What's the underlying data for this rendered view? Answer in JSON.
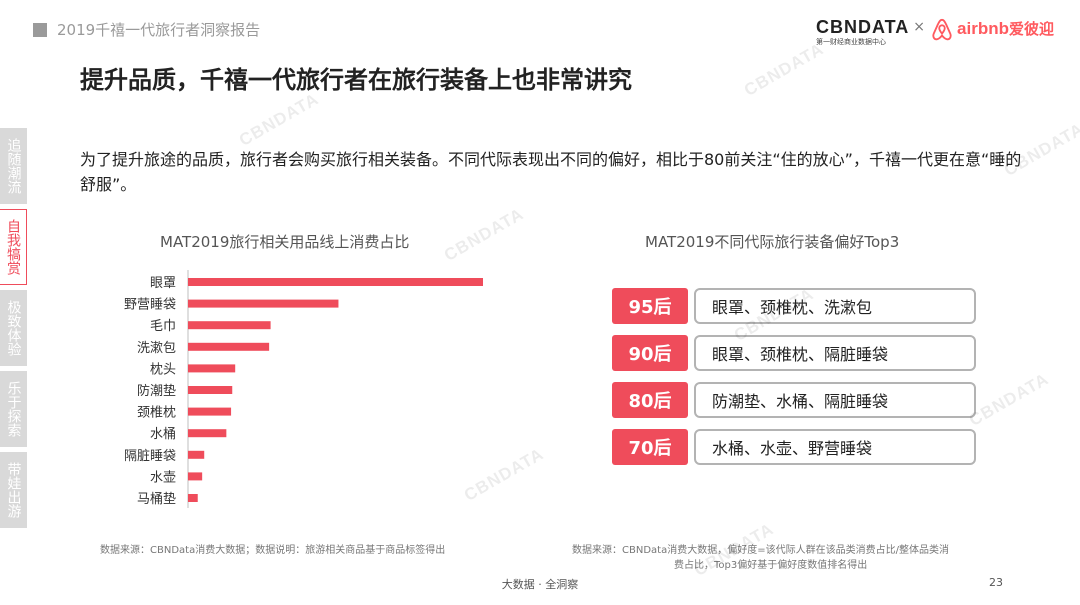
{
  "header": {
    "report_title": "2019千禧一代旅行者洞察报告",
    "cbn_logo": "CBNDATA",
    "cbn_tagline": "第一财经商业数据中心",
    "times": "×",
    "airbnb_logo": "airbnb",
    "airbnb_cn": "爱彼迎"
  },
  "headline": "提升品质，千禧一代旅行者在旅行装备上也非常讲究",
  "intro": "为了提升旅途的品质，旅行者会购买旅行相关装备。不同代际表现出不同的偏好，相比于80前关注“住的放心”，千禧一代更在意“睡的舒服”。",
  "sidenav": [
    {
      "label": "追随潮流",
      "active": false
    },
    {
      "label": "自我犒赏",
      "active": true
    },
    {
      "label": "极致体验",
      "active": false
    },
    {
      "label": "乐于探索",
      "active": false
    },
    {
      "label": "带娃出游",
      "active": false
    }
  ],
  "chart_data": [
    {
      "type": "bar",
      "orientation": "horizontal",
      "title": "MAT2019旅行相关用品线上消费占比",
      "categories": [
        "眼罩",
        "野营睡袋",
        "毛巾",
        "洗漱包",
        "枕头",
        "防潮垫",
        "颈椎枕",
        "水桶",
        "隔脏睡袋",
        "水壶",
        "马桶垫"
      ],
      "values": [
        100,
        51,
        28,
        27.5,
        16,
        15,
        14.6,
        13,
        5.5,
        4.8,
        3.3
      ],
      "xlabel": "",
      "ylabel": "",
      "bar_color": "#ef4c5b",
      "grid": false
    },
    {
      "type": "table",
      "title": "MAT2019不同代际旅行装备偏好Top3",
      "rows": [
        {
          "generation": "95后",
          "items": "眼罩、颈椎枕、洗漱包"
        },
        {
          "generation": "90后",
          "items": "眼罩、颈椎枕、隔脏睡袋"
        },
        {
          "generation": "80后",
          "items": "防潮垫、水桶、隔脏睡袋"
        },
        {
          "generation": "70后",
          "items": "水桶、水壶、野营睡袋"
        }
      ]
    }
  ],
  "sources": {
    "left": "数据来源：CBNData消费大数据；数据说明：旅游相关商品基于商品标签得出",
    "right_line1": "数据来源：CBNData消费大数据，偏好度=该代际人群在该品类消费占比/整体品类消",
    "right_line2": "费占比，Top3偏好基于偏好度数值排名得出"
  },
  "footer": {
    "text": "大数据 · 全洞察",
    "page": "23"
  },
  "watermark": "CBNDATA",
  "colors": {
    "accent": "#ef4c5b",
    "gray": "#9a9a9a",
    "nav_bg": "#d9d9d9"
  }
}
